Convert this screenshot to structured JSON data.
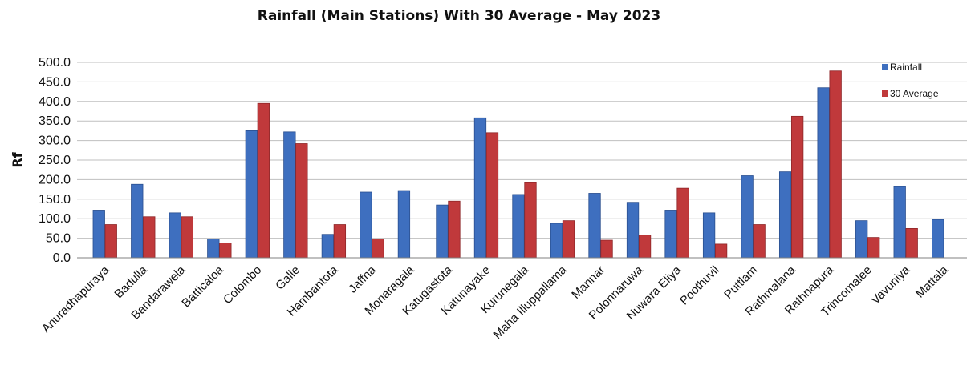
{
  "chart_data": {
    "type": "bar",
    "title": "Rainfall (Main Stations) With 30 Average - May 2023",
    "xlabel": "",
    "ylabel": "Rf",
    "ylim": [
      0,
      500
    ],
    "ytick_step": 50,
    "ytick_labels": [
      "0.0",
      "50.0",
      "100.0",
      "150.0",
      "200.0",
      "250.0",
      "300.0",
      "350.0",
      "400.0",
      "450.0",
      "500.0"
    ],
    "grid": true,
    "legend_position": "top-right",
    "categories": [
      "Anuradhapuraya",
      "Badulla",
      "Bandarawela",
      "Batticaloa",
      "Colombo",
      "Galle",
      "Hambantota",
      "Jaffna",
      "Monaragala",
      "Katugastota",
      "Katunayake",
      "Kurunegala",
      "Maha Illuppallama",
      "Mannar",
      "Polonnaruwa",
      "Nuwara Eliya",
      "Poothuvil",
      "Puttlam",
      "Rathmalana",
      "Rathnapura",
      "Trincomalee",
      "Vavuniya",
      "Mattala"
    ],
    "series": [
      {
        "name": "Rainfall",
        "color": "#3e6fbf",
        "values": [
          122,
          188,
          115,
          48,
          325,
          322,
          60,
          168,
          172,
          135,
          358,
          162,
          88,
          165,
          142,
          122,
          115,
          210,
          220,
          435,
          95,
          182,
          98
        ]
      },
      {
        "name": "30 Average",
        "color": "#c0393b",
        "values": [
          85,
          105,
          105,
          38,
          395,
          292,
          85,
          48,
          null,
          145,
          320,
          192,
          95,
          45,
          58,
          178,
          35,
          85,
          362,
          478,
          52,
          75,
          null
        ]
      }
    ]
  }
}
